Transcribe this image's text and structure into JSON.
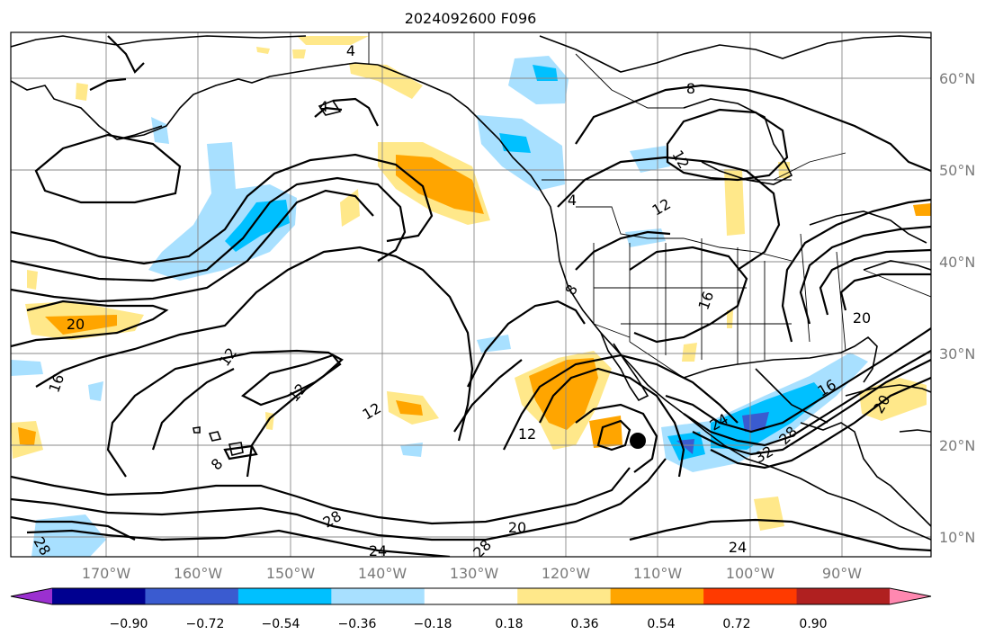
{
  "title": "2024092600 F096",
  "lon_labels": [
    "170°W",
    "160°W",
    "150°W",
    "140°W",
    "130°W",
    "120°W",
    "110°W",
    "100°W",
    "90°W"
  ],
  "lat_labels": [
    "60°N",
    "50°N",
    "40°N",
    "30°N",
    "20°N",
    "10°N"
  ],
  "colorbar": {
    "tick_labels": [
      "−0.90",
      "−0.72",
      "−0.54",
      "−0.36",
      "−0.18",
      "0.18",
      "0.36",
      "0.54",
      "0.72",
      "0.90"
    ],
    "colors": [
      "#9b30d0",
      "#000090",
      "#3a5bd0",
      "#00c0ff",
      "#a8e0ff",
      "#ffffff",
      "#ffe88a",
      "#ffa500",
      "#ff3a00",
      "#b02020",
      "#ff88b0"
    ]
  },
  "contour_labels": [
    "4",
    "4",
    "8",
    "12",
    "4",
    "12",
    "12",
    "12",
    "16",
    "20",
    "12",
    "8",
    "12",
    "16",
    "20",
    "28",
    "20",
    "28",
    "24",
    "28",
    "24",
    "20",
    "16",
    "24",
    "32",
    "28",
    "8"
  ],
  "marker": "storm-center-dot"
}
